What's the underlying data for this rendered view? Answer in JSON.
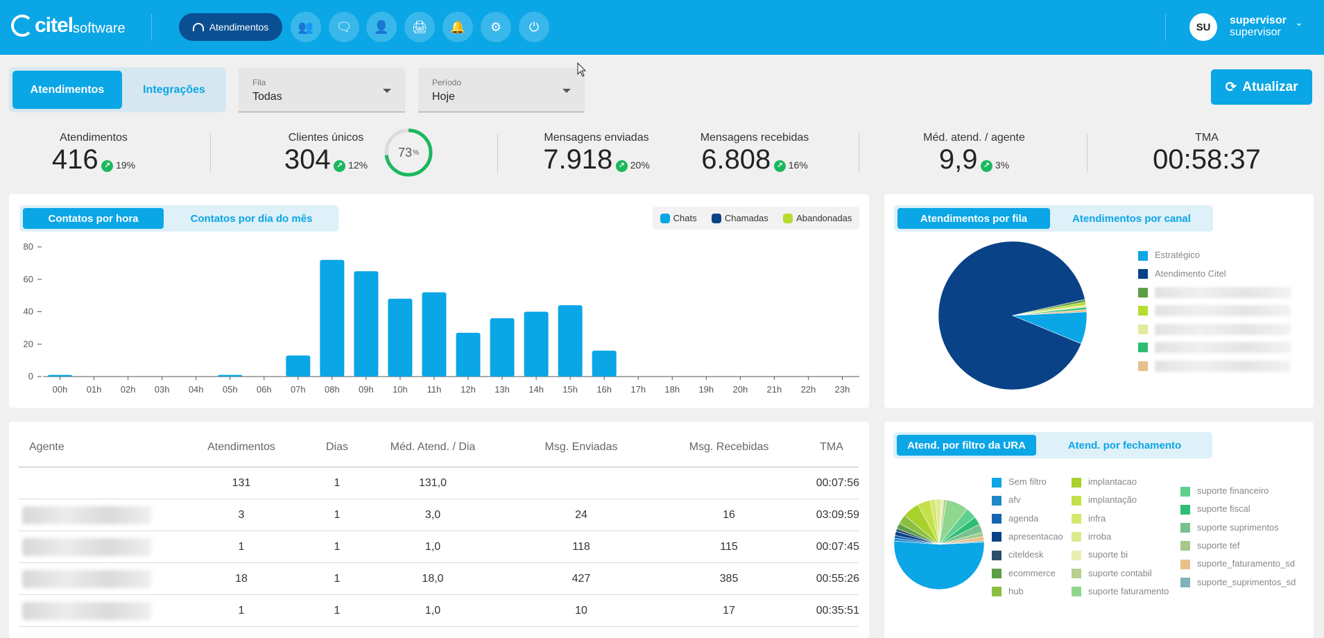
{
  "header": {
    "logo_main": "citel",
    "logo_sub": "software",
    "nav_active_label": "Atendimentos",
    "nav_icons": [
      "users-icon",
      "chat-icon",
      "contacts-icon",
      "printer-icon",
      "bell-icon",
      "gear-icon",
      "power-icon"
    ],
    "user_initials": "SU",
    "user_name": "supervisor",
    "user_role": "supervisor"
  },
  "filters": {
    "tabs": [
      "Atendimentos",
      "Integrações"
    ],
    "fila_label": "Fila",
    "fila_value": "Todas",
    "periodo_label": "Período",
    "periodo_value": "Hoje",
    "refresh_label": "Atualizar"
  },
  "kpis": {
    "atendimentos": {
      "label": "Atendimentos",
      "value": "416",
      "delta": "19%"
    },
    "clientes": {
      "label": "Clientes únicos",
      "value": "304",
      "delta": "12%",
      "ring_value": "73",
      "ring_unit": "%",
      "ring_fraction": 0.73
    },
    "msg_enviadas": {
      "label": "Mensagens enviadas",
      "value": "7.918",
      "delta": "20%"
    },
    "msg_recebidas": {
      "label": "Mensagens recebidas",
      "value": "6.808",
      "delta": "16%"
    },
    "media": {
      "label": "Méd. atend. / agente",
      "value": "9,9",
      "delta": "3%"
    },
    "tma": {
      "label": "TMA",
      "value": "00:58:37"
    }
  },
  "hourly": {
    "tab_active": "Contatos por hora",
    "tab_inactive": "Contatos por dia do mês",
    "legend": [
      {
        "label": "Chats",
        "color": "#0aa6e6"
      },
      {
        "label": "Chamadas",
        "color": "#0a4288"
      },
      {
        "label": "Abandonadas",
        "color": "#b5dc2f"
      }
    ]
  },
  "chart_data": {
    "type": "bar",
    "categories": [
      "00h",
      "01h",
      "02h",
      "03h",
      "04h",
      "05h",
      "06h",
      "07h",
      "08h",
      "09h",
      "10h",
      "11h",
      "12h",
      "13h",
      "14h",
      "15h",
      "16h",
      "17h",
      "18h",
      "19h",
      "20h",
      "21h",
      "22h",
      "23h"
    ],
    "series": [
      {
        "name": "Chats",
        "values": [
          1,
          0,
          0,
          0,
          0,
          1,
          0,
          13,
          72,
          65,
          48,
          52,
          27,
          36,
          40,
          44,
          16,
          0,
          0,
          0,
          0,
          0,
          0,
          0
        ]
      },
      {
        "name": "Chamadas",
        "values": [
          0,
          0,
          0,
          0,
          0,
          0,
          0,
          0,
          0,
          0,
          0,
          0,
          0,
          0,
          0,
          0,
          0,
          0,
          0,
          0,
          0,
          0,
          0,
          0
        ]
      },
      {
        "name": "Abandonadas",
        "values": [
          0,
          0,
          0,
          0,
          0,
          0,
          0,
          0,
          0,
          0,
          0,
          0,
          0,
          0,
          0,
          0,
          0,
          0,
          0,
          0,
          0,
          0,
          0,
          0
        ]
      }
    ],
    "yticks": [
      "0",
      "20",
      "40",
      "60",
      "80"
    ],
    "ylim": [
      0,
      80
    ]
  },
  "fila": {
    "tab_active": "Atendimentos por fila",
    "tab_inactive": "Atendimentos por canal",
    "legend": [
      {
        "label": "Estratégico",
        "color": "#0aa6e6"
      },
      {
        "label": "Atendimento Citel",
        "color": "#0a4288"
      },
      {
        "label": "",
        "color": "#5e9e44"
      },
      {
        "label": "",
        "color": "#b5dc2f"
      },
      {
        "label": "",
        "color": "#e4ea9e"
      },
      {
        "label": "",
        "color": "#2dbd74"
      },
      {
        "label": "",
        "color": "#e8c08c"
      }
    ],
    "slices": [
      0.07,
      0.903,
      0.006,
      0.006,
      0.005,
      0.005,
      0.005
    ]
  },
  "table": {
    "headers": [
      "Agente",
      "Atendimentos",
      "Dias",
      "Méd. Atend. / Dia",
      "Msg. Enviadas",
      "Msg. Recebidas",
      "TMA"
    ],
    "rows": [
      {
        "agente": "",
        "atend": "131",
        "dias": "1",
        "media": "131,0",
        "env": "",
        "rec": "",
        "tma": "00:07:56"
      },
      {
        "agente": "",
        "atend": "3",
        "dias": "1",
        "media": "3,0",
        "env": "24",
        "rec": "16",
        "tma": "03:09:59"
      },
      {
        "agente": "",
        "atend": "1",
        "dias": "1",
        "media": "1,0",
        "env": "118",
        "rec": "115",
        "tma": "00:07:45"
      },
      {
        "agente": "",
        "atend": "18",
        "dias": "1",
        "media": "18,0",
        "env": "427",
        "rec": "385",
        "tma": "00:55:26"
      },
      {
        "agente": "",
        "atend": "1",
        "dias": "1",
        "media": "1,0",
        "env": "10",
        "rec": "17",
        "tma": "00:35:51"
      }
    ]
  },
  "ura": {
    "tab_active": "Atend. por filtro da URA",
    "tab_inactive": "Atend. por fechamento",
    "legend_col1": [
      {
        "label": "Sem filtro",
        "color": "#0aa6e6"
      },
      {
        "label": "afv",
        "color": "#1e88c8"
      },
      {
        "label": "agenda",
        "color": "#1565b0"
      },
      {
        "label": "apresentacao",
        "color": "#0a4288"
      },
      {
        "label": "citeldesk",
        "color": "#2c4e6b"
      },
      {
        "label": "ecommerce",
        "color": "#5e9e44"
      },
      {
        "label": "hub",
        "color": "#8cbf3f"
      }
    ],
    "legend_col2": [
      {
        "label": "implantacao",
        "color": "#a8d12a"
      },
      {
        "label": "implantação",
        "color": "#c4e04a"
      },
      {
        "label": "infra",
        "color": "#d3e86e"
      },
      {
        "label": "irroba",
        "color": "#dfe98f"
      },
      {
        "label": "suporte bi",
        "color": "#e8eeb2"
      },
      {
        "label": "suporte contabil",
        "color": "#b7cf8f"
      },
      {
        "label": "suporte faturamento",
        "color": "#8fd68f"
      }
    ],
    "legend_col3": [
      {
        "label": "suporte financeiro",
        "color": "#5fcf8e"
      },
      {
        "label": "suporte fiscal",
        "color": "#2dbd74"
      },
      {
        "label": "suporte suprimentos",
        "color": "#78c08e"
      },
      {
        "label": "suporte tef",
        "color": "#a6c98a"
      },
      {
        "label": "suporte_faturamento_sd",
        "color": "#e8c08c"
      },
      {
        "label": "suporte_suprimentos_sd",
        "color": "#7fb2b8"
      }
    ],
    "slices": [
      {
        "color": "#0aa6e6",
        "value": 0.52
      },
      {
        "color": "#1e88c8",
        "value": 0.01
      },
      {
        "color": "#1565b0",
        "value": 0.01
      },
      {
        "color": "#0a4288",
        "value": 0.015
      },
      {
        "color": "#2c4e6b",
        "value": 0.01
      },
      {
        "color": "#5e9e44",
        "value": 0.02
      },
      {
        "color": "#8cbf3f",
        "value": 0.035
      },
      {
        "color": "#a8d12a",
        "value": 0.06
      },
      {
        "color": "#c4e04a",
        "value": 0.045
      },
      {
        "color": "#d3e86e",
        "value": 0.02
      },
      {
        "color": "#dfe98f",
        "value": 0.02
      },
      {
        "color": "#e8eeb2",
        "value": 0.01
      },
      {
        "color": "#b7cf8f",
        "value": 0.01
      },
      {
        "color": "#8fd68f",
        "value": 0.08
      },
      {
        "color": "#5fcf8e",
        "value": 0.04
      },
      {
        "color": "#2dbd74",
        "value": 0.03
      },
      {
        "color": "#78c08e",
        "value": 0.03
      },
      {
        "color": "#a6c98a",
        "value": 0.015
      },
      {
        "color": "#e8c08c",
        "value": 0.015
      },
      {
        "color": "#7fb2b8",
        "value": 0.005
      }
    ]
  }
}
